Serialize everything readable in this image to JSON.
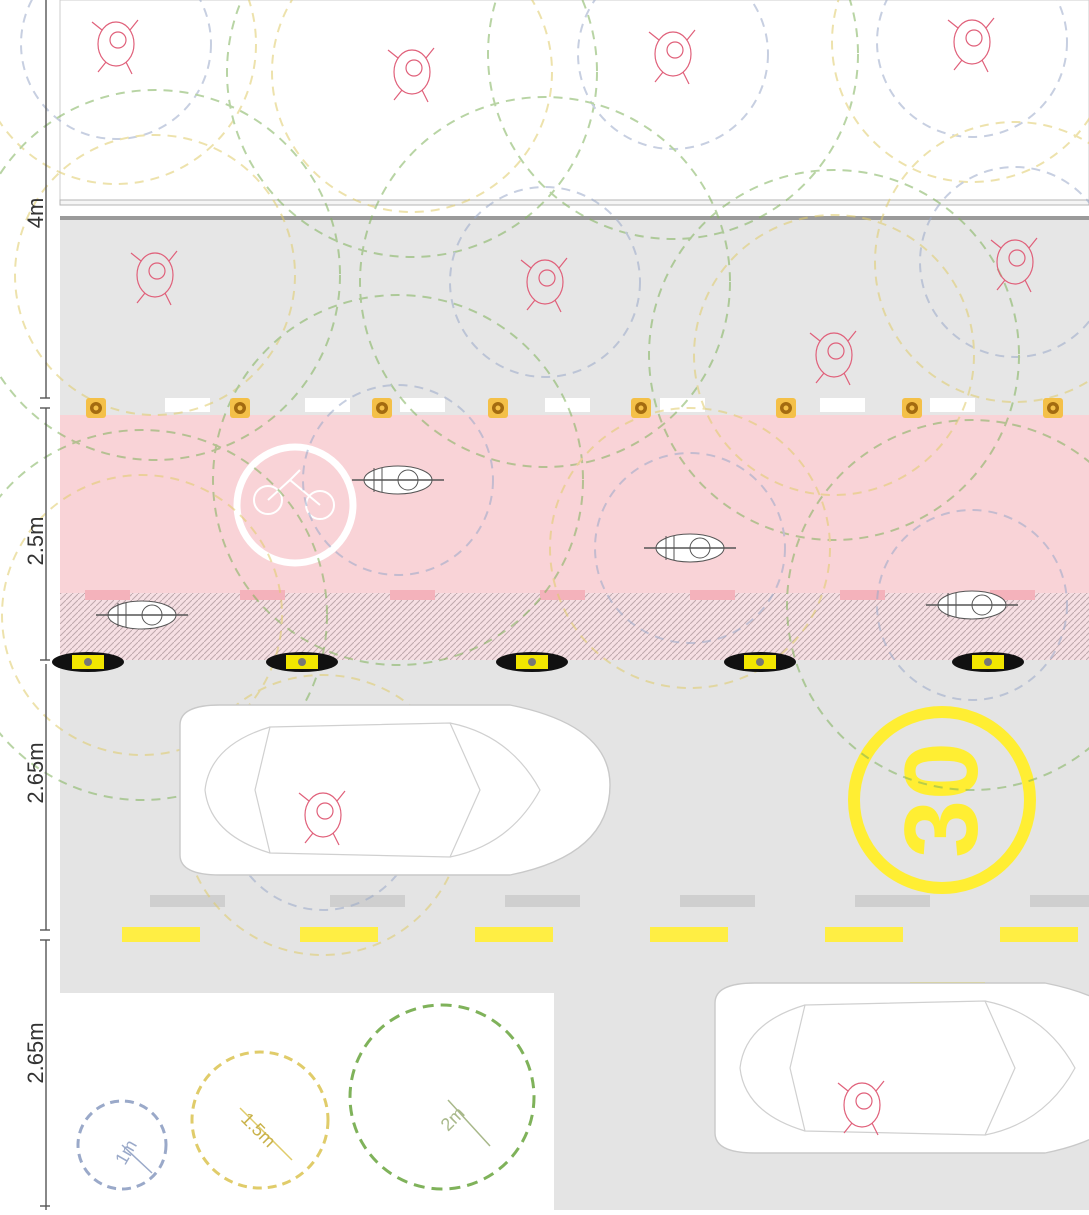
{
  "dimensions": {
    "sidewalk": "4m",
    "bike_lane": "2.5m",
    "car_lane_1": "2.65m",
    "car_lane_2": "2.65m"
  },
  "speed_limit": "30",
  "legend": {
    "items": [
      {
        "label": "1m",
        "color": "#9aa9c9"
      },
      {
        "label": "1.5m",
        "color": "#e0cc6a"
      },
      {
        "label": "2m",
        "color": "#7fb25a"
      }
    ]
  },
  "colors": {
    "sidewalk": "#e6e6e6",
    "bike_lane": "#f9d3d7",
    "road": "#e4e4e4",
    "center_line": "#ffee44",
    "lane_line": "#cfcfcf",
    "speed_sign": "#ffee33",
    "pedestrian_outline": "#e0607a"
  }
}
